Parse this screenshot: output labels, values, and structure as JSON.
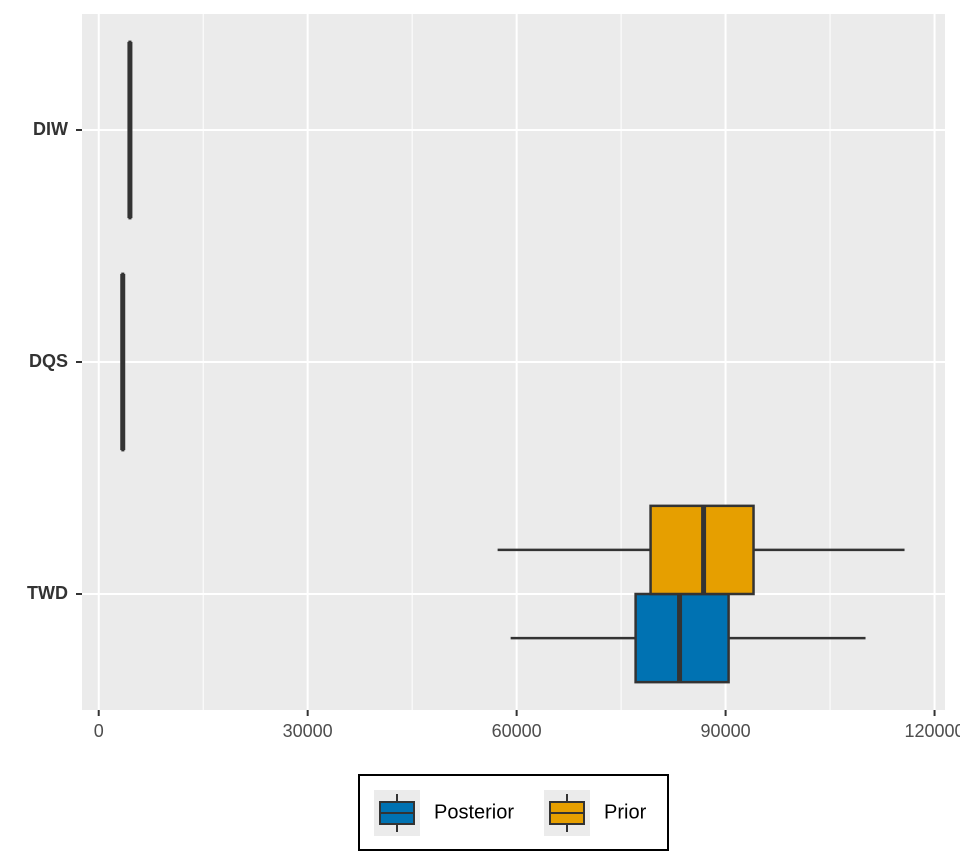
{
  "chart_data": {
    "type": "boxplot",
    "orientation": "horizontal",
    "categories": [
      "TWD",
      "DQS",
      "DIW"
    ],
    "series": [
      {
        "name": "Posterior",
        "color": "#0072B2",
        "min": [
          59140,
          3400,
          4420
        ],
        "q1": [
          77080,
          3430,
          4450
        ],
        "median": [
          83390,
          3450,
          4480
        ],
        "q3": [
          90430,
          3470,
          4510
        ],
        "max": [
          110090,
          3500,
          4540
        ]
      },
      {
        "name": "Prior",
        "color": "#E69F00",
        "min": [
          57270,
          3380,
          4400
        ],
        "q1": [
          79230,
          3420,
          4440
        ],
        "median": [
          86840,
          3450,
          4480
        ],
        "q3": [
          94010,
          3480,
          4520
        ],
        "max": [
          115690,
          3520,
          4560
        ]
      }
    ],
    "xlim": [
      -2400,
      121500
    ],
    "xticks": [
      0,
      30000,
      60000,
      90000,
      120000
    ],
    "grid": true,
    "legend": "bottom"
  }
}
